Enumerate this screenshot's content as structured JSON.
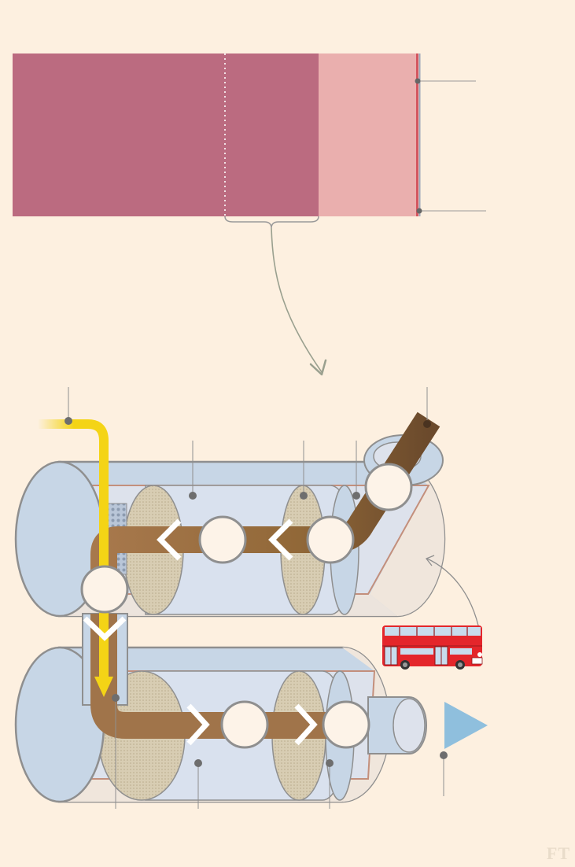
{
  "brand": {
    "logo": "FT"
  },
  "colors": {
    "background": "#fdf0e0",
    "bar_dark": "#bb6b80",
    "bar_light": "#eaafae",
    "bar_edge": "#d4555f",
    "leader_line": "#8f8f8f",
    "callout_dot": "#6e6e6e",
    "curved_arrow": "#9aa08f",
    "canister_shell": "#c7d6e6",
    "canister_end": "#f0e6dc",
    "canister_inner": "#dde2ec",
    "outline": "#8f8f8f",
    "copper_line": "#c38f7c",
    "filter_mesh": "#d8cdb3",
    "mixer_mesh": "#9faec4",
    "exhaust_in": "#6b4a2c",
    "exhaust_mid": "#a7784c",
    "urea": "#f4d416",
    "clean_air": "#8fbfdd",
    "stage_circle_fill": "#fdf3e8",
    "bus_red": "#e4262b",
    "bus_window": "#c8dced"
  },
  "icons": [
    "chevron-left-icon",
    "chevron-down-icon",
    "chevron-right-icon",
    "bus-icon",
    "outlet-arrow-icon"
  ],
  "stages": {
    "count": 6
  },
  "callouts": {
    "count": 13
  }
}
